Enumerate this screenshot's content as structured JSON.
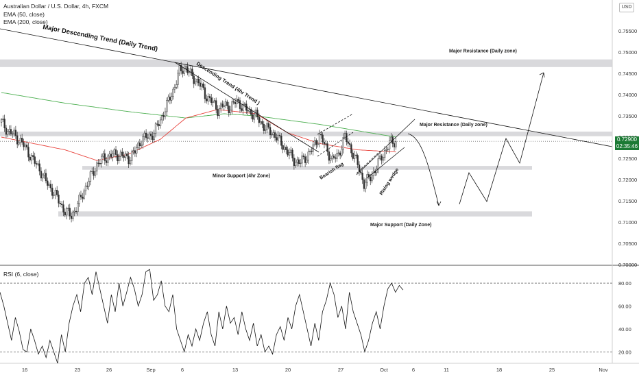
{
  "header": {
    "symbol_line": "Australian Dollar / U.S. Dollar, 4h, FXCM",
    "ema50_label": "EMA (50, close)",
    "ema200_label": "EMA (200, close)",
    "currency_button": "USD"
  },
  "price_tag": {
    "price": "0.72900",
    "countdown": "02:35:46",
    "color": "#1b7a34"
  },
  "rsi_panel": {
    "label": "RSI (6, close)"
  },
  "colors": {
    "ema50": "#e8433c",
    "ema200": "#4caf50",
    "zone": "#d9d9dc",
    "up": "#2e2e2e",
    "down": "#2e2e2e",
    "line": "#111111"
  },
  "chart_data": [
    {
      "type": "candlestick",
      "title": "Australian Dollar / U.S. Dollar, 4h, FXCM",
      "y_ticks": [
        "0.75500",
        "0.75000",
        "0.74500",
        "0.74000",
        "0.73500",
        "0.73000",
        "0.72500",
        "0.72000",
        "0.71500",
        "0.71000",
        "0.70500",
        "0.70000"
      ],
      "x_ticks": [
        "16",
        "23",
        "26",
        "Sep",
        "6",
        "13",
        "20",
        "27",
        "Oct",
        "6",
        "11",
        "18",
        "25",
        "Nov"
      ],
      "ylim": [
        0.6998,
        0.7623
      ],
      "close_path_approx": [
        [
          0,
          0.7335
        ],
        [
          4,
          0.7315
        ],
        [
          8,
          0.7305
        ],
        [
          12,
          0.729
        ],
        [
          16,
          0.727
        ],
        [
          20,
          0.7245
        ],
        [
          24,
          0.7225
        ],
        [
          28,
          0.7195
        ],
        [
          32,
          0.7175
        ],
        [
          36,
          0.715
        ],
        [
          40,
          0.7125
        ],
        [
          44,
          0.7115
        ],
        [
          48,
          0.714
        ],
        [
          52,
          0.7175
        ],
        [
          56,
          0.7205
        ],
        [
          60,
          0.7235
        ],
        [
          64,
          0.725
        ],
        [
          68,
          0.7255
        ],
        [
          72,
          0.726
        ],
        [
          76,
          0.7255
        ],
        [
          80,
          0.725
        ],
        [
          84,
          0.7265
        ],
        [
          88,
          0.7295
        ],
        [
          92,
          0.73
        ],
        [
          96,
          0.731
        ],
        [
          100,
          0.734
        ],
        [
          104,
          0.7375
        ],
        [
          108,
          0.741
        ],
        [
          112,
          0.7455
        ],
        [
          116,
          0.7465
        ],
        [
          120,
          0.744
        ],
        [
          124,
          0.743
        ],
        [
          128,
          0.74
        ],
        [
          132,
          0.7385
        ],
        [
          136,
          0.7365
        ],
        [
          140,
          0.7375
        ],
        [
          144,
          0.737
        ],
        [
          148,
          0.7385
        ],
        [
          152,
          0.737
        ],
        [
          156,
          0.736
        ],
        [
          160,
          0.735
        ],
        [
          164,
          0.733
        ],
        [
          168,
          0.7315
        ],
        [
          172,
          0.7305
        ],
        [
          176,
          0.7285
        ],
        [
          180,
          0.7265
        ],
        [
          184,
          0.7245
        ],
        [
          188,
          0.724
        ],
        [
          192,
          0.7255
        ],
        [
          196,
          0.7275
        ],
        [
          200,
          0.7305
        ],
        [
          204,
          0.7275
        ],
        [
          208,
          0.7245
        ],
        [
          212,
          0.726
        ],
        [
          216,
          0.73
        ],
        [
          220,
          0.727
        ],
        [
          224,
          0.7235
        ],
        [
          228,
          0.719
        ],
        [
          232,
          0.7205
        ],
        [
          236,
          0.723
        ],
        [
          240,
          0.726
        ],
        [
          244,
          0.7285
        ],
        [
          248,
          0.729
        ]
      ],
      "ema50_path_approx": [
        [
          0,
          0.73
        ],
        [
          40,
          0.727
        ],
        [
          60,
          0.7245
        ],
        [
          80,
          0.726
        ],
        [
          100,
          0.7295
        ],
        [
          116,
          0.7345
        ],
        [
          136,
          0.7365
        ],
        [
          160,
          0.7355
        ],
        [
          180,
          0.731
        ],
        [
          200,
          0.7285
        ],
        [
          224,
          0.727
        ],
        [
          248,
          0.7265
        ]
      ],
      "ema200_path_approx": [
        [
          0,
          0.7405
        ],
        [
          40,
          0.738
        ],
        [
          80,
          0.736
        ],
        [
          116,
          0.7345
        ],
        [
          140,
          0.7355
        ],
        [
          160,
          0.735
        ],
        [
          180,
          0.734
        ],
        [
          200,
          0.733
        ],
        [
          224,
          0.7315
        ],
        [
          248,
          0.73
        ]
      ],
      "zones": [
        {
          "label": "Major Resistance (Daily zone)",
          "y_low": 0.7465,
          "y_high": 0.7483
        },
        {
          "label": "Major Resistance (Daily zone)",
          "y_low": 0.7302,
          "y_high": 0.7313
        },
        {
          "label": "Minor Support (4hr Zone)",
          "y_low": 0.7223,
          "y_high": 0.7232
        },
        {
          "label": "Major Support (Daily Zone)",
          "y_low": 0.7113,
          "y_high": 0.7125
        }
      ],
      "annotations": [
        "Major Descending Trend (Daily Trend)",
        "Descending Trend (4hr Trend )",
        "Bearish flag",
        "Rising wedge"
      ],
      "current_price": 0.729
    },
    {
      "type": "line",
      "title": "RSI (6, close)",
      "y_ticks": [
        "80.00",
        "60.00",
        "40.00",
        "20.00"
      ],
      "reference_lines": [
        80,
        20
      ],
      "ylim": [
        10,
        95
      ],
      "values": [
        72,
        60,
        45,
        30,
        50,
        38,
        22,
        20,
        40,
        30,
        18,
        25,
        15,
        30,
        20,
        10,
        35,
        20,
        45,
        60,
        70,
        55,
        80,
        85,
        70,
        90,
        75,
        60,
        45,
        70,
        55,
        80,
        60,
        72,
        85,
        75,
        60,
        70,
        90,
        92,
        65,
        70,
        82,
        60,
        55,
        70,
        40,
        30,
        20,
        35,
        25,
        40,
        30,
        45,
        55,
        35,
        25,
        55,
        40,
        60,
        45,
        50,
        35,
        55,
        40,
        30,
        45,
        25,
        35,
        20,
        25,
        18,
        35,
        42,
        30,
        50,
        40,
        60,
        70,
        55,
        40,
        25,
        45,
        30,
        55,
        65,
        80,
        70,
        50,
        60,
        40,
        72,
        55,
        45,
        35,
        20,
        30,
        45,
        55,
        40,
        60,
        75,
        80,
        72,
        78,
        74
      ]
    }
  ]
}
